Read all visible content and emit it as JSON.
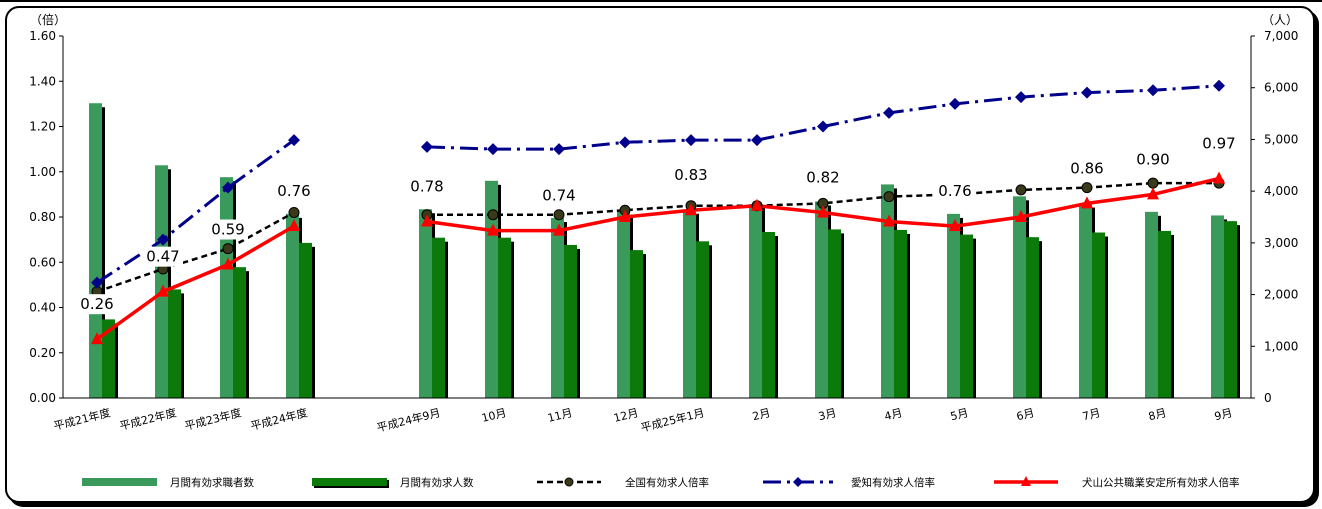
{
  "chart_data": {
    "type": "bar",
    "y_left_unit": "（倍）",
    "y_right_unit": "（人）",
    "y_left_ticks": [
      "0.00",
      "0.20",
      "0.40",
      "0.60",
      "0.80",
      "1.00",
      "1.20",
      "1.40",
      "1.60"
    ],
    "y_right_ticks": [
      "0",
      "1,000",
      "2,000",
      "3,000",
      "4,000",
      "5,000",
      "6,000",
      "7,000"
    ],
    "ylim_left": [
      0,
      1.6
    ],
    "ylim_right": [
      0,
      7000
    ],
    "categories": [
      "平成21年度",
      "平成22年度",
      "平成23年度",
      "平成24年度",
      "平成24年9月",
      "10月",
      "11月",
      "12月",
      "平成25年1月",
      "2月",
      "3月",
      "4月",
      "5月",
      "6月",
      "7月",
      "8月",
      "9月"
    ],
    "series": [
      {
        "name": "月間有効求職者数",
        "kind": "bar",
        "axis": "right",
        "color": "#3a9a5c",
        "values": [
          5700,
          4500,
          4270,
          3560,
          3650,
          4200,
          3480,
          3620,
          3640,
          3750,
          3800,
          4130,
          3560,
          3900,
          3760,
          3600,
          3530
        ]
      },
      {
        "name": "月間有効求人数",
        "kind": "bar",
        "axis": "right",
        "color": "#0b7a0b",
        "values": [
          1520,
          2100,
          2530,
          3000,
          3100,
          3100,
          2960,
          2860,
          3030,
          3210,
          3260,
          3250,
          3160,
          3110,
          3200,
          3230,
          3420
        ]
      },
      {
        "name": "全国有効求人倍率",
        "kind": "line",
        "axis": "left",
        "color": "#000000",
        "values": [
          0.47,
          0.57,
          0.66,
          0.82,
          0.81,
          0.81,
          0.81,
          0.83,
          0.85,
          0.85,
          0.86,
          0.89,
          0.9,
          0.92,
          0.93,
          0.95,
          0.95
        ]
      },
      {
        "name": "愛知有効求人倍率",
        "kind": "line",
        "axis": "left",
        "color": "#00008b",
        "values": [
          0.51,
          0.7,
          0.93,
          1.14,
          1.11,
          1.1,
          1.1,
          1.13,
          1.14,
          1.14,
          1.2,
          1.26,
          1.3,
          1.33,
          1.35,
          1.36,
          1.38
        ]
      },
      {
        "name": "犬山公共職業安定所有効求人倍率",
        "kind": "line",
        "axis": "left",
        "color": "#ff0000",
        "values": [
          0.26,
          0.47,
          0.59,
          0.76,
          0.78,
          0.74,
          0.74,
          0.8,
          0.83,
          0.85,
          0.82,
          0.78,
          0.76,
          0.8,
          0.86,
          0.9,
          0.97
        ]
      }
    ],
    "data_labels": [
      {
        "index": 0,
        "text": "0.26"
      },
      {
        "index": 1,
        "text": "0.47"
      },
      {
        "index": 2,
        "text": "0.59"
      },
      {
        "index": 3,
        "text": "0.76"
      },
      {
        "index": 4,
        "text": "0.78"
      },
      {
        "index": 6,
        "text": "0.74"
      },
      {
        "index": 8,
        "text": "0.83"
      },
      {
        "index": 10,
        "text": "0.82"
      },
      {
        "index": 12,
        "text": "0.76"
      },
      {
        "index": 14,
        "text": "0.86"
      },
      {
        "index": 15,
        "text": "0.90"
      },
      {
        "index": 16,
        "text": "0.97"
      }
    ],
    "legend_position": "bottom"
  }
}
